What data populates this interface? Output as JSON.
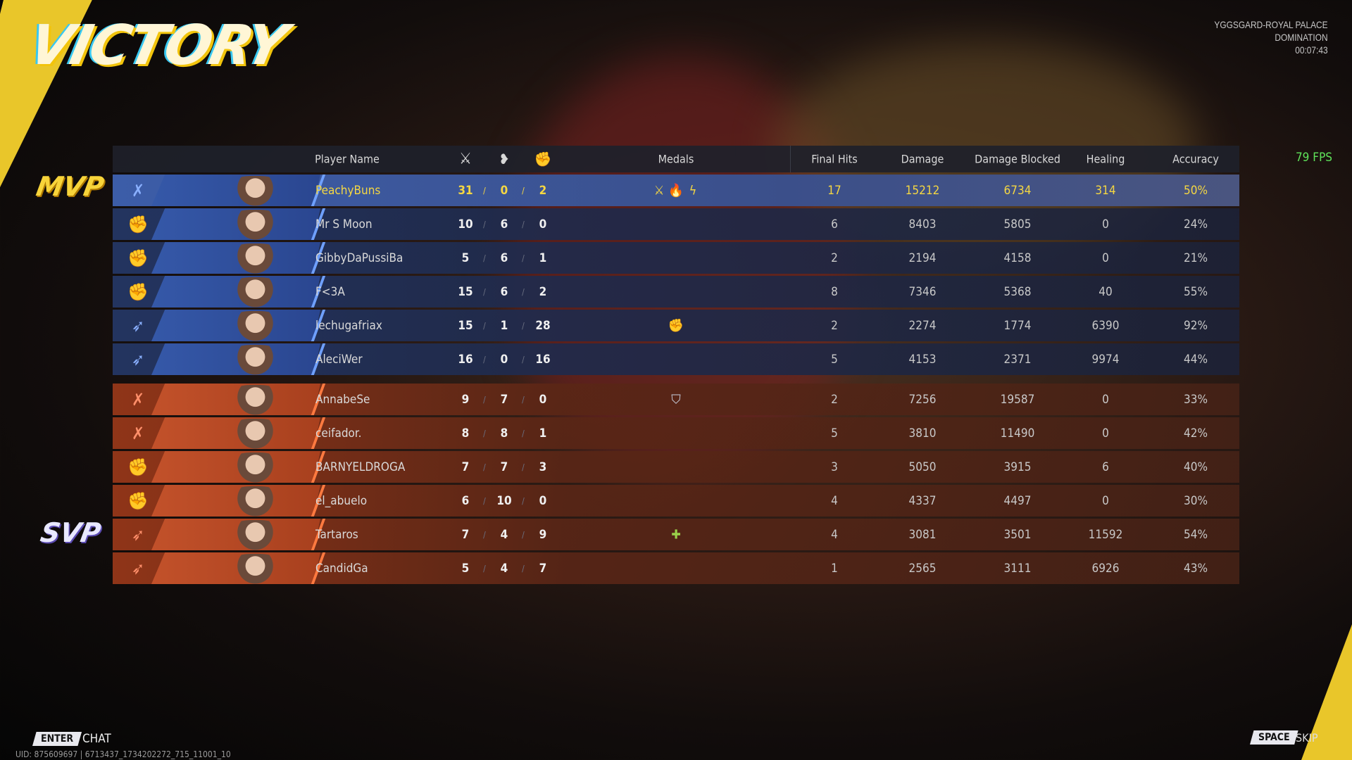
{
  "header": {
    "title": "VICTORY",
    "map": "YGGSGARD-ROYAL PALACE",
    "mode": "DOMINATION",
    "duration": "00:07:43",
    "fps": "79 FPS"
  },
  "badges": {
    "mvp": "MVP",
    "svp": "SVP"
  },
  "columns": {
    "player": "Player Name",
    "kills_icon": "crossed-swords-icon",
    "deaths_icon": "broken-heart-icon",
    "assists_icon": "helping-hand-icon",
    "medals": "Medals",
    "final_hits": "Final Hits",
    "damage": "Damage",
    "damage_blocked": "Damage Blocked",
    "healing": "Healing",
    "accuracy": "Accuracy"
  },
  "colors": {
    "ally": "#2a4690",
    "enemy": "#a8401e",
    "mvp_highlight": "#f5d742",
    "fps": "#5fe35a"
  },
  "players": [
    {
      "team": "ally",
      "role_icon": "crossed-fists-icon",
      "name": "PeachyBuns",
      "k": "31",
      "d": "0",
      "a": "2",
      "medals": [
        "crossed-swords-icon",
        "flame-icon",
        "lightning-icon"
      ],
      "fh": "17",
      "dmg": "15212",
      "blk": "6734",
      "heal": "314",
      "acc": "50%",
      "mvp": true
    },
    {
      "team": "ally",
      "role_icon": "fist-icon",
      "name": "Mr S Moon",
      "k": "10",
      "d": "6",
      "a": "0",
      "medals": [],
      "fh": "6",
      "dmg": "8403",
      "blk": "5805",
      "heal": "0",
      "acc": "24%"
    },
    {
      "team": "ally",
      "role_icon": "fist-icon",
      "name": "GibbyDaPussiBa",
      "k": "5",
      "d": "6",
      "a": "1",
      "medals": [],
      "fh": "2",
      "dmg": "2194",
      "blk": "4158",
      "heal": "0",
      "acc": "21%"
    },
    {
      "team": "ally",
      "role_icon": "fist-icon",
      "name": "F<3A",
      "k": "15",
      "d": "6",
      "a": "2",
      "medals": [],
      "fh": "8",
      "dmg": "7346",
      "blk": "5368",
      "heal": "40",
      "acc": "55%"
    },
    {
      "team": "ally",
      "role_icon": "wing-icon",
      "name": "lechugafriax",
      "k": "15",
      "d": "1",
      "a": "28",
      "medals": [
        "fist-medal-icon"
      ],
      "fh": "2",
      "dmg": "2274",
      "blk": "1774",
      "heal": "6390",
      "acc": "92%"
    },
    {
      "team": "ally",
      "role_icon": "wing-icon",
      "name": "AleciWer",
      "k": "16",
      "d": "0",
      "a": "16",
      "medals": [],
      "fh": "5",
      "dmg": "4153",
      "blk": "2371",
      "heal": "9974",
      "acc": "44%"
    },
    {
      "team": "enemy",
      "role_icon": "crossed-fists-icon",
      "name": "AnnabeSe",
      "k": "9",
      "d": "7",
      "a": "0",
      "medals": [
        "shield-icon"
      ],
      "fh": "2",
      "dmg": "7256",
      "blk": "19587",
      "heal": "0",
      "acc": "33%"
    },
    {
      "team": "enemy",
      "role_icon": "crossed-fists-icon",
      "name": "ceifador.",
      "k": "8",
      "d": "8",
      "a": "1",
      "medals": [],
      "fh": "5",
      "dmg": "3810",
      "blk": "11490",
      "heal": "0",
      "acc": "42%"
    },
    {
      "team": "enemy",
      "role_icon": "fist-icon",
      "name": "BARNYELDROGA",
      "k": "7",
      "d": "7",
      "a": "3",
      "medals": [],
      "fh": "3",
      "dmg": "5050",
      "blk": "3915",
      "heal": "6",
      "acc": "40%"
    },
    {
      "team": "enemy",
      "role_icon": "fist-icon",
      "name": "el_abuelo",
      "k": "6",
      "d": "10",
      "a": "0",
      "medals": [],
      "fh": "4",
      "dmg": "4337",
      "blk": "4497",
      "heal": "0",
      "acc": "30%"
    },
    {
      "team": "enemy",
      "role_icon": "wing-icon",
      "name": "Tartaros",
      "k": "7",
      "d": "4",
      "a": "9",
      "medals": [
        "plus-icon"
      ],
      "fh": "4",
      "dmg": "3081",
      "blk": "3501",
      "heal": "11592",
      "acc": "54%"
    },
    {
      "team": "enemy",
      "role_icon": "wing-icon",
      "name": "CandidGa",
      "k": "5",
      "d": "4",
      "a": "7",
      "medals": [],
      "fh": "1",
      "dmg": "2565",
      "blk": "3111",
      "heal": "6926",
      "acc": "43%"
    }
  ],
  "footer": {
    "enter_key": "ENTER",
    "chat": "CHAT",
    "uid": "UID: 875609697 | 6713437_1734202272_715_11001_10",
    "space_key": "SPACE",
    "skip": "SKIP"
  }
}
